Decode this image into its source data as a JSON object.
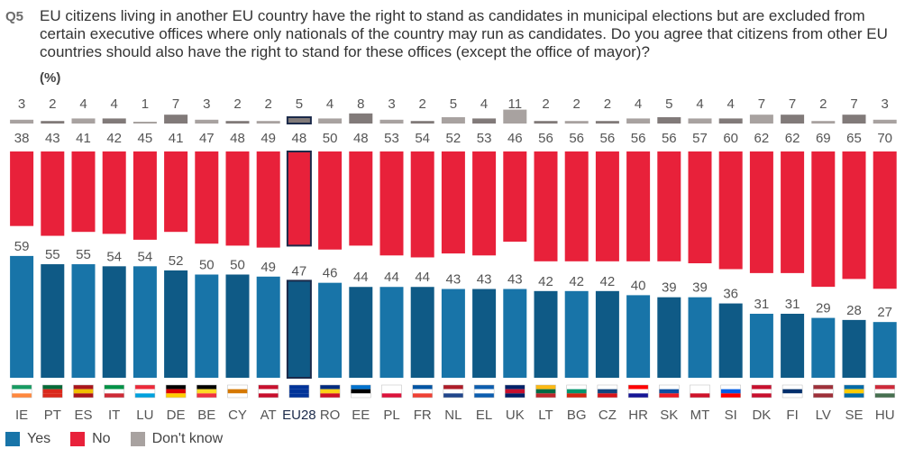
{
  "question": {
    "label": "Q5",
    "text": "EU citizens living in another EU country have the right to stand as candidates in municipal elections but are excluded from certain executive offices where only nationals of the country may run as candidates. Do you agree that citizens from other EU countries should also have the right to stand for these offices (except the office of mayor)?"
  },
  "unit_label": "(%)",
  "colors": {
    "yes": "#1874a8",
    "yes_dark": "#0f5a86",
    "no": "#e8213a",
    "dk": "#a8a2a0",
    "dk_dark": "#817a79",
    "highlight_border": "#1b2a4a"
  },
  "chart_data": {
    "type": "bar",
    "stacked": true,
    "title": "",
    "ylabel": "(%)",
    "ylim": [
      0,
      100
    ],
    "highlight": "EU28",
    "categories": [
      "IE",
      "PT",
      "ES",
      "IT",
      "LU",
      "DE",
      "BE",
      "CY",
      "AT",
      "EU28",
      "RO",
      "EE",
      "PL",
      "FR",
      "NL",
      "EL",
      "UK",
      "LT",
      "BG",
      "CZ",
      "HR",
      "SK",
      "MT",
      "SI",
      "DK",
      "FI",
      "LV",
      "SE",
      "HU"
    ],
    "series": [
      {
        "name": "Yes",
        "values": [
          59,
          55,
          55,
          54,
          54,
          52,
          50,
          50,
          49,
          47,
          46,
          44,
          44,
          44,
          43,
          43,
          43,
          42,
          42,
          42,
          40,
          39,
          39,
          36,
          31,
          31,
          29,
          28,
          27
        ]
      },
      {
        "name": "No",
        "values": [
          38,
          43,
          41,
          42,
          45,
          41,
          47,
          48,
          49,
          48,
          50,
          48,
          53,
          54,
          52,
          53,
          46,
          56,
          56,
          56,
          56,
          56,
          57,
          60,
          62,
          62,
          69,
          65,
          70
        ]
      },
      {
        "name": "Don't know",
        "values": [
          3,
          2,
          4,
          4,
          1,
          7,
          3,
          2,
          2,
          5,
          4,
          8,
          3,
          2,
          5,
          4,
          11,
          2,
          2,
          2,
          4,
          5,
          4,
          4,
          7,
          7,
          2,
          7,
          3
        ]
      }
    ],
    "legend": [
      "Yes",
      "No",
      "Don't know"
    ],
    "legend_position": "bottom-left"
  }
}
